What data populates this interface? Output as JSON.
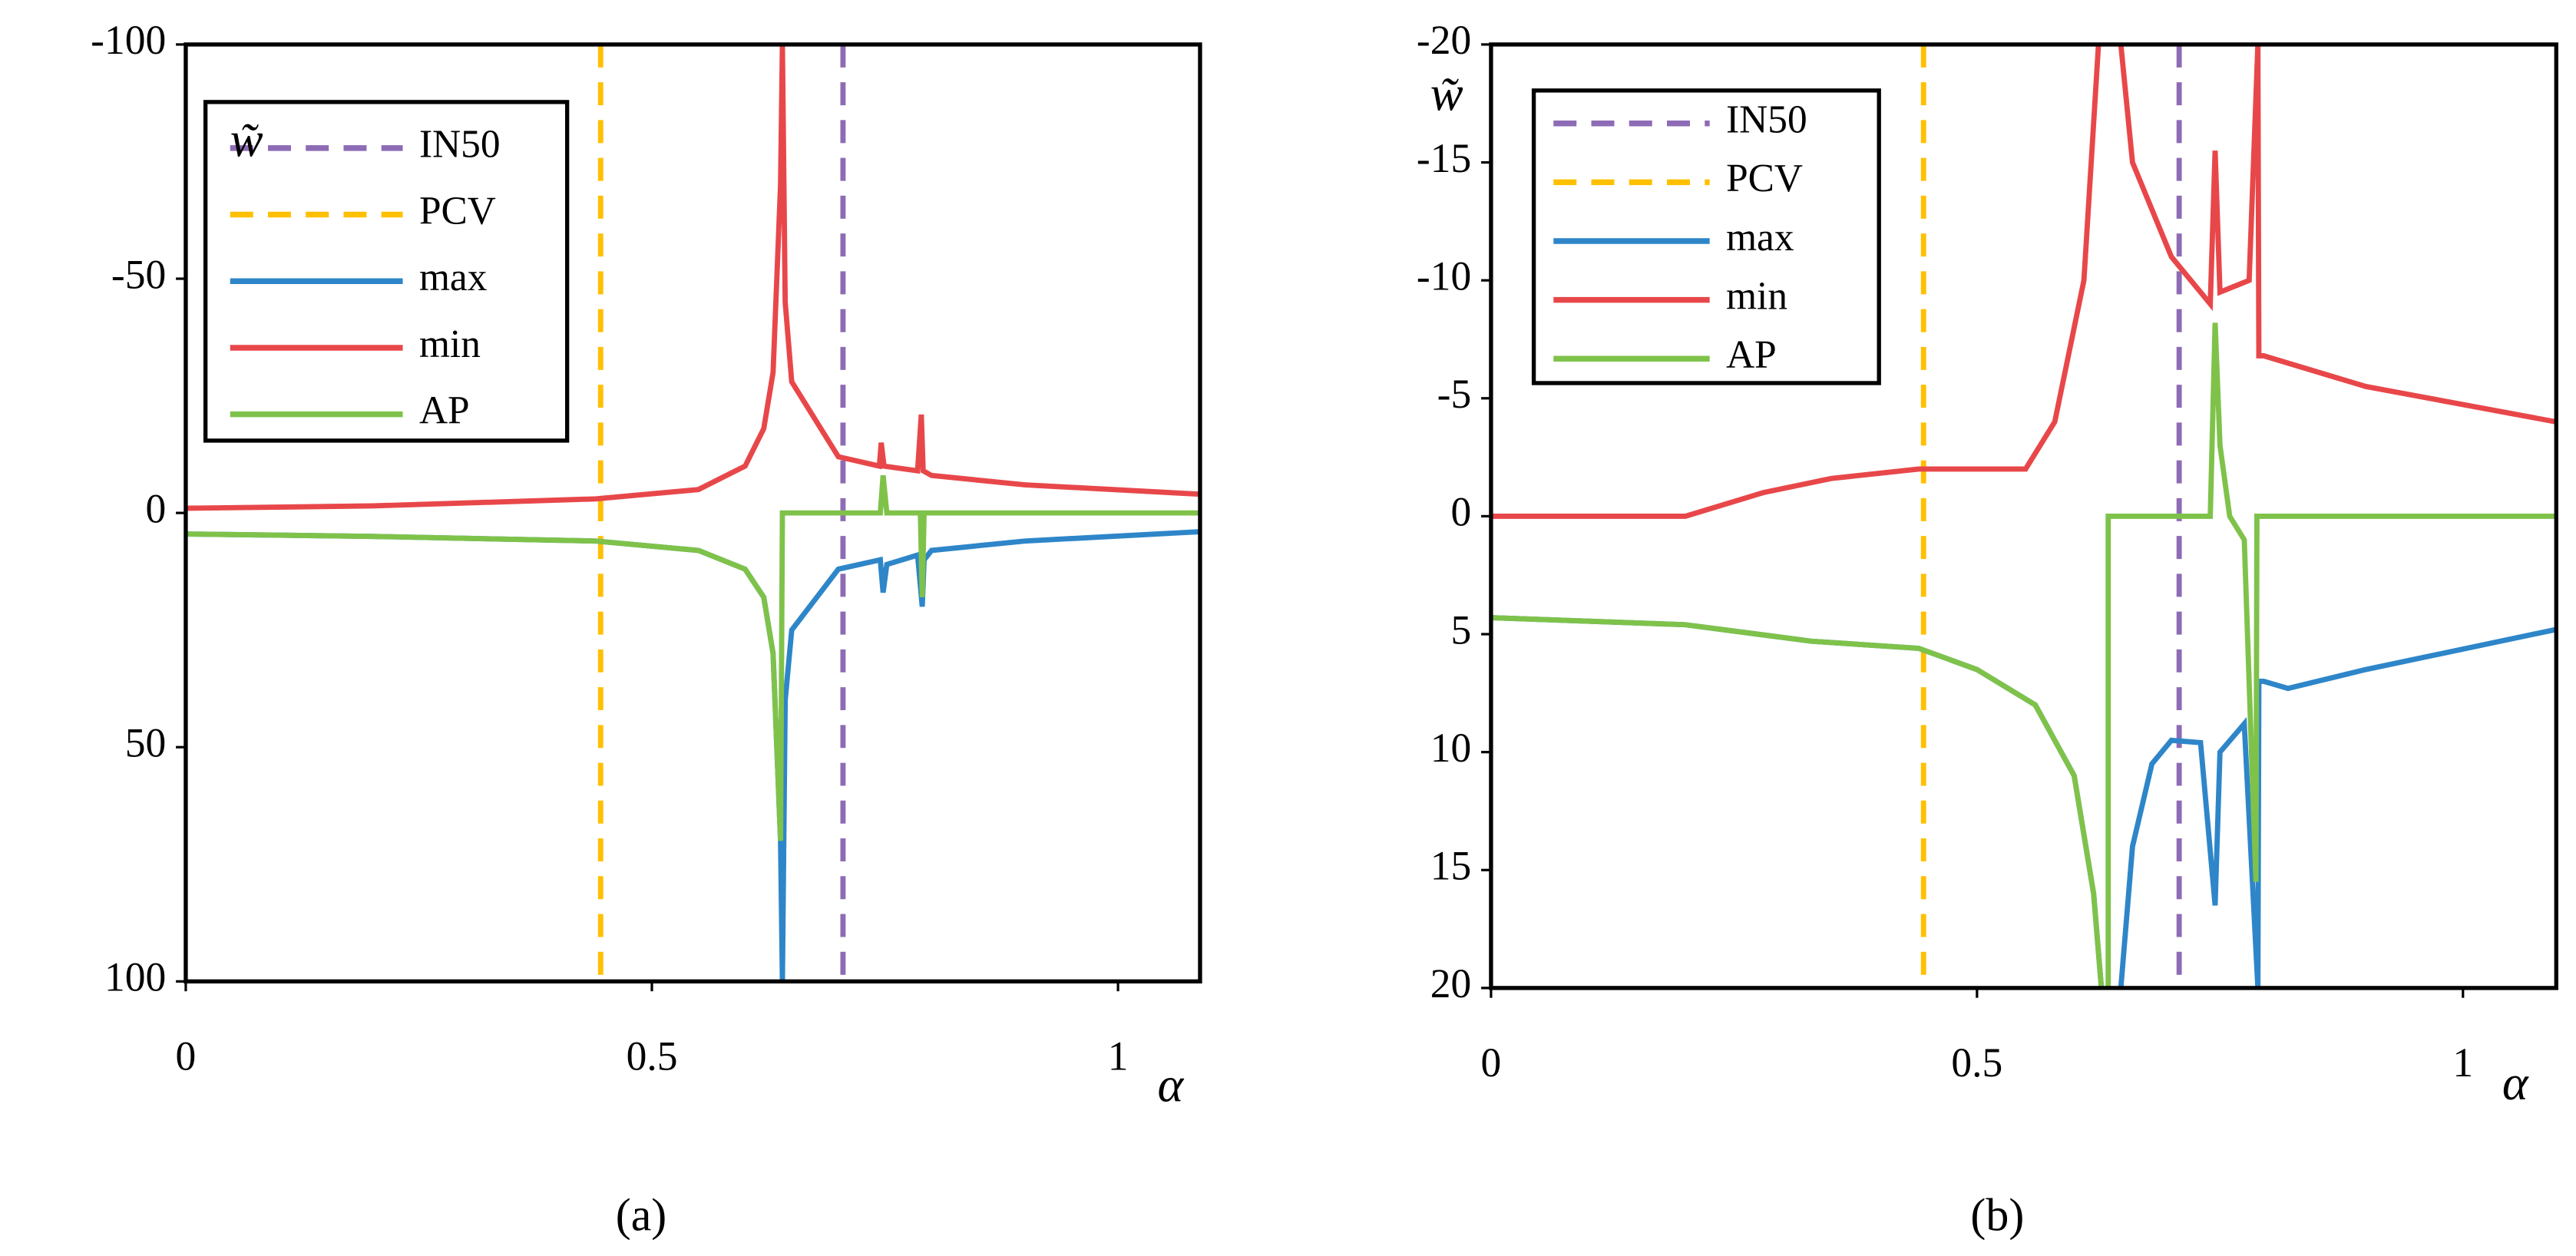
{
  "chart_data": [
    {
      "type": "line",
      "panel_label": "(a)",
      "y_label": "w̃",
      "x_label": "α",
      "xlim": [
        0,
        1.088
      ],
      "ylim": [
        -100,
        100
      ],
      "y_inverted": true,
      "xticks": [
        0,
        0.5,
        1
      ],
      "yticks": [
        -100,
        -50,
        0,
        50,
        100
      ],
      "grid": false,
      "legend": "upper left",
      "series": [
        {
          "name": "IN50",
          "color": "#8e6bb5",
          "dashed": true,
          "x": [
            0.705,
            0.705
          ],
          "values": [
            -100,
            100
          ]
        },
        {
          "name": "PCV",
          "color": "#ffc000",
          "dashed": true,
          "x": [
            0.445,
            0.445
          ],
          "values": [
            -100,
            100
          ]
        },
        {
          "name": "max",
          "color": "#2e86c9",
          "dashed": false,
          "x": [
            0,
            0.2,
            0.44,
            0.55,
            0.6,
            0.62,
            0.63,
            0.638,
            0.64,
            0.643,
            0.65,
            0.7,
            0.745,
            0.748,
            0.752,
            0.785,
            0.79,
            0.792,
            0.8,
            0.9,
            1.088
          ],
          "values": [
            4.5,
            5,
            6,
            8,
            12,
            18,
            30,
            70,
            100,
            40,
            25,
            12,
            10,
            17,
            11,
            9,
            20,
            10,
            8,
            6,
            4
          ]
        },
        {
          "name": "min",
          "color": "#e8474a",
          "dashed": false,
          "x": [
            0,
            0.2,
            0.44,
            0.55,
            0.6,
            0.62,
            0.63,
            0.638,
            0.64,
            0.643,
            0.65,
            0.7,
            0.744,
            0.746,
            0.749,
            0.785,
            0.789,
            0.791,
            0.8,
            0.9,
            1.088
          ],
          "values": [
            -1,
            -1.5,
            -3,
            -5,
            -10,
            -18,
            -30,
            -70,
            -100,
            -45,
            -28,
            -12,
            -10,
            -15,
            -10,
            -9,
            -21,
            -9,
            -8,
            -6,
            -4
          ]
        },
        {
          "name": "AP",
          "color": "#7fc24a",
          "dashed": false,
          "x": [
            0,
            0.2,
            0.44,
            0.55,
            0.6,
            0.62,
            0.63,
            0.638,
            0.64,
            0.745,
            0.748,
            0.752,
            0.788,
            0.79,
            0.792,
            1.088
          ],
          "values": [
            4.5,
            5,
            6,
            8,
            12,
            18,
            30,
            70,
            0,
            0,
            -8,
            0,
            0,
            18,
            0,
            0
          ]
        }
      ]
    },
    {
      "type": "line",
      "panel_label": "(b)",
      "y_label": "w̃",
      "x_label": "α",
      "xlim": [
        0,
        1.096
      ],
      "ylim": [
        -20,
        20
      ],
      "y_inverted": true,
      "xticks": [
        0,
        0.5,
        1
      ],
      "yticks": [
        -20,
        -15,
        -10,
        -5,
        0,
        5,
        10,
        15,
        20
      ],
      "grid": false,
      "legend": "upper left",
      "series": [
        {
          "name": "IN50",
          "color": "#8e6bb5",
          "dashed": true,
          "x": [
            0.708,
            0.708
          ],
          "values": [
            -20,
            20
          ]
        },
        {
          "name": "PCV",
          "color": "#ffc000",
          "dashed": true,
          "x": [
            0.445,
            0.445
          ],
          "values": [
            -20,
            20
          ]
        },
        {
          "name": "max",
          "color": "#2e86c9",
          "dashed": false,
          "x": [
            0,
            0.2,
            0.33,
            0.44,
            0.5,
            0.56,
            0.6,
            0.62,
            0.628,
            0.64,
            0.648,
            0.66,
            0.68,
            0.7,
            0.73,
            0.745,
            0.75,
            0.775,
            0.789,
            0.79,
            0.795,
            0.82,
            0.9,
            1.096
          ],
          "values": [
            4.3,
            4.6,
            5.3,
            5.6,
            6.5,
            8,
            11,
            16,
            20,
            null,
            20,
            14,
            10.5,
            9.5,
            9.6,
            16.5,
            10,
            8.8,
            20,
            7,
            7,
            7.3,
            6.5,
            4.8
          ]
        },
        {
          "name": "min",
          "color": "#e8474a",
          "dashed": false,
          "x": [
            0,
            0.2,
            0.28,
            0.35,
            0.44,
            0.55,
            0.58,
            0.61,
            0.625,
            0.64,
            0.648,
            0.66,
            0.7,
            0.74,
            0.745,
            0.75,
            0.78,
            0.789,
            0.79,
            0.795,
            0.9,
            1.096
          ],
          "values": [
            0,
            0,
            -1,
            -1.6,
            -2,
            -2,
            -4,
            -10,
            -20,
            null,
            -20,
            -15,
            -11,
            -9,
            -15.5,
            -9.5,
            -10,
            -20,
            -6.8,
            -6.8,
            -5.5,
            -4
          ]
        },
        {
          "name": "AP",
          "color": "#7fc24a",
          "dashed": false,
          "x": [
            0,
            0.2,
            0.33,
            0.44,
            0.5,
            0.56,
            0.6,
            0.62,
            0.628,
            0.63,
            0.635,
            0.635,
            0.74,
            0.745,
            0.75,
            0.76,
            0.775,
            0.787,
            0.788,
            1.096
          ],
          "values": [
            4.3,
            4.6,
            5.3,
            5.6,
            6.5,
            8,
            11,
            16,
            20,
            null,
            20,
            0,
            0,
            -8.2,
            -3,
            0,
            1,
            15.5,
            0,
            0
          ]
        }
      ]
    }
  ]
}
